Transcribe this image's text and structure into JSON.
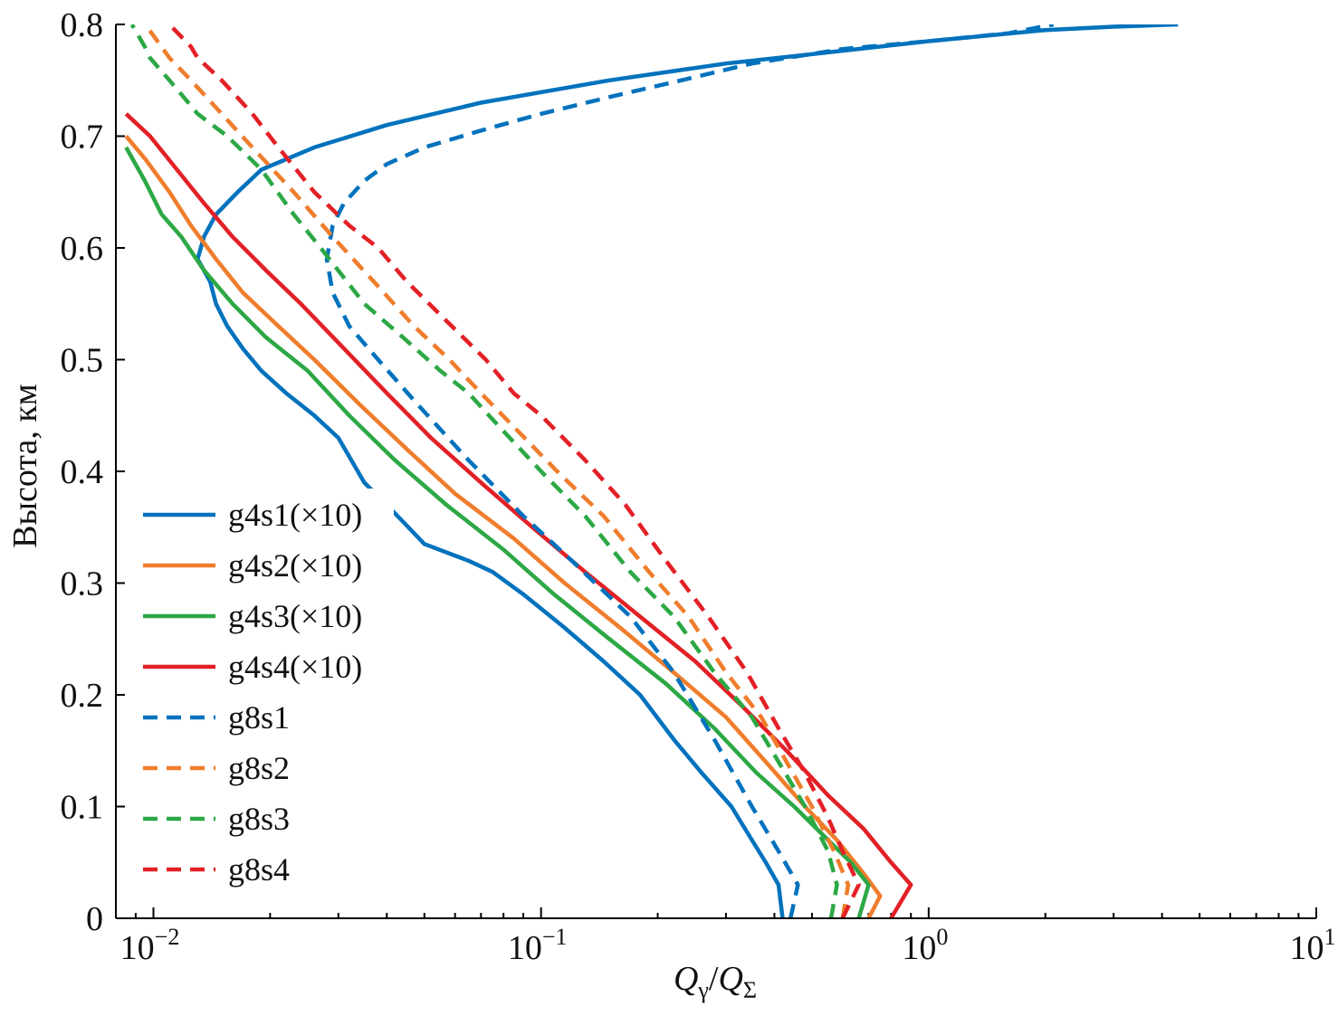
{
  "chart_data": {
    "type": "line",
    "title": "",
    "xlabel": "Q",
    "xlabel_parts": {
      "q1": "Q",
      "sub1": "γ",
      "slash": "/",
      "q2": "Q",
      "sub2": "Σ"
    },
    "ylabel": "Высота, км",
    "xscale": "log",
    "xlim": [
      0.008,
      10
    ],
    "ylim": [
      0,
      0.8
    ],
    "yticks": [
      "0",
      "0.1",
      "0.2",
      "0.3",
      "0.4",
      "0.5",
      "0.6",
      "0.7",
      "0.8"
    ],
    "xticks": [
      {
        "base": "10",
        "exp": "−2",
        "value": 0.01
      },
      {
        "base": "10",
        "exp": "−1",
        "value": 0.1
      },
      {
        "base": "10",
        "exp": "0",
        "value": 1
      },
      {
        "base": "10",
        "exp": "1",
        "value": 10
      }
    ],
    "legend_position": "lower-left",
    "series": [
      {
        "name": "g4s1(×10)",
        "color": "#0072bd",
        "dash": false,
        "points": [
          [
            0.42,
            0
          ],
          [
            0.41,
            0.03
          ],
          [
            0.38,
            0.05
          ],
          [
            0.35,
            0.07
          ],
          [
            0.31,
            0.1
          ],
          [
            0.26,
            0.13
          ],
          [
            0.22,
            0.16
          ],
          [
            0.18,
            0.2
          ],
          [
            0.145,
            0.23
          ],
          [
            0.115,
            0.26
          ],
          [
            0.09,
            0.29
          ],
          [
            0.075,
            0.31
          ],
          [
            0.065,
            0.32
          ],
          [
            0.05,
            0.335
          ],
          [
            0.04,
            0.37
          ],
          [
            0.035,
            0.39
          ],
          [
            0.03,
            0.43
          ],
          [
            0.026,
            0.45
          ],
          [
            0.022,
            0.47
          ],
          [
            0.019,
            0.49
          ],
          [
            0.017,
            0.51
          ],
          [
            0.0155,
            0.53
          ],
          [
            0.0145,
            0.55
          ],
          [
            0.014,
            0.57
          ],
          [
            0.013,
            0.59
          ],
          [
            0.0135,
            0.61
          ],
          [
            0.0145,
            0.63
          ],
          [
            0.0165,
            0.65
          ],
          [
            0.019,
            0.67
          ],
          [
            0.026,
            0.69
          ],
          [
            0.04,
            0.71
          ],
          [
            0.07,
            0.73
          ],
          [
            0.15,
            0.75
          ],
          [
            0.3,
            0.765
          ],
          [
            0.55,
            0.775
          ],
          [
            1.0,
            0.785
          ],
          [
            2.0,
            0.795
          ],
          [
            3.0,
            0.798
          ],
          [
            4.4,
            0.8
          ]
        ]
      },
      {
        "name": "g4s2(×10)",
        "color": "#ef7d2c",
        "dash": false,
        "points": [
          [
            0.7,
            0
          ],
          [
            0.75,
            0.02
          ],
          [
            0.68,
            0.04
          ],
          [
            0.58,
            0.07
          ],
          [
            0.48,
            0.1
          ],
          [
            0.38,
            0.14
          ],
          [
            0.3,
            0.18
          ],
          [
            0.22,
            0.22
          ],
          [
            0.16,
            0.26
          ],
          [
            0.115,
            0.3
          ],
          [
            0.085,
            0.34
          ],
          [
            0.06,
            0.38
          ],
          [
            0.045,
            0.42
          ],
          [
            0.034,
            0.46
          ],
          [
            0.026,
            0.5
          ],
          [
            0.021,
            0.53
          ],
          [
            0.017,
            0.56
          ],
          [
            0.0145,
            0.59
          ],
          [
            0.0125,
            0.62
          ],
          [
            0.011,
            0.65
          ],
          [
            0.0095,
            0.68
          ],
          [
            0.0085,
            0.7
          ]
        ]
      },
      {
        "name": "g4s3(×10)",
        "color": "#2ca845",
        "dash": false,
        "points": [
          [
            0.66,
            0
          ],
          [
            0.7,
            0.03
          ],
          [
            0.63,
            0.05
          ],
          [
            0.55,
            0.07
          ],
          [
            0.45,
            0.1
          ],
          [
            0.36,
            0.13
          ],
          [
            0.28,
            0.17
          ],
          [
            0.21,
            0.21
          ],
          [
            0.15,
            0.25
          ],
          [
            0.108,
            0.29
          ],
          [
            0.08,
            0.33
          ],
          [
            0.057,
            0.37
          ],
          [
            0.042,
            0.41
          ],
          [
            0.032,
            0.45
          ],
          [
            0.025,
            0.49
          ],
          [
            0.0195,
            0.52
          ],
          [
            0.016,
            0.55
          ],
          [
            0.0135,
            0.58
          ],
          [
            0.0118,
            0.61
          ],
          [
            0.0105,
            0.63
          ],
          [
            0.0095,
            0.66
          ],
          [
            0.0085,
            0.69
          ]
        ]
      },
      {
        "name": "g4s4(×10)",
        "color": "#e32026",
        "dash": false,
        "points": [
          [
            0.8,
            0
          ],
          [
            0.9,
            0.03
          ],
          [
            0.8,
            0.05
          ],
          [
            0.68,
            0.08
          ],
          [
            0.55,
            0.11
          ],
          [
            0.43,
            0.15
          ],
          [
            0.33,
            0.19
          ],
          [
            0.25,
            0.23
          ],
          [
            0.18,
            0.27
          ],
          [
            0.13,
            0.31
          ],
          [
            0.095,
            0.35
          ],
          [
            0.07,
            0.39
          ],
          [
            0.052,
            0.43
          ],
          [
            0.04,
            0.47
          ],
          [
            0.031,
            0.51
          ],
          [
            0.024,
            0.55
          ],
          [
            0.0195,
            0.58
          ],
          [
            0.016,
            0.61
          ],
          [
            0.0135,
            0.64
          ],
          [
            0.0115,
            0.67
          ],
          [
            0.0098,
            0.7
          ],
          [
            0.0085,
            0.72
          ]
        ]
      },
      {
        "name": "g8s1",
        "color": "#0072bd",
        "dash": true,
        "points": [
          [
            0.44,
            0
          ],
          [
            0.46,
            0.03
          ],
          [
            0.41,
            0.06
          ],
          [
            0.35,
            0.1
          ],
          [
            0.28,
            0.16
          ],
          [
            0.22,
            0.22
          ],
          [
            0.17,
            0.27
          ],
          [
            0.12,
            0.32
          ],
          [
            0.09,
            0.36
          ],
          [
            0.065,
            0.41
          ],
          [
            0.048,
            0.46
          ],
          [
            0.038,
            0.5
          ],
          [
            0.032,
            0.53
          ],
          [
            0.029,
            0.56
          ],
          [
            0.028,
            0.59
          ],
          [
            0.029,
            0.62
          ],
          [
            0.031,
            0.64
          ],
          [
            0.035,
            0.66
          ],
          [
            0.04,
            0.675
          ],
          [
            0.05,
            0.69
          ],
          [
            0.07,
            0.705
          ],
          [
            0.1,
            0.72
          ],
          [
            0.15,
            0.735
          ],
          [
            0.23,
            0.75
          ],
          [
            0.35,
            0.765
          ],
          [
            0.6,
            0.778
          ],
          [
            1.0,
            0.785
          ],
          [
            1.6,
            0.792
          ],
          [
            2.1,
            0.8
          ]
        ]
      },
      {
        "name": "g8s2",
        "color": "#ef7d2c",
        "dash": true,
        "points": [
          [
            0.6,
            0
          ],
          [
            0.62,
            0.03
          ],
          [
            0.57,
            0.06
          ],
          [
            0.5,
            0.1
          ],
          [
            0.43,
            0.14
          ],
          [
            0.37,
            0.18
          ],
          [
            0.3,
            0.22
          ],
          [
            0.24,
            0.27
          ],
          [
            0.19,
            0.31
          ],
          [
            0.145,
            0.36
          ],
          [
            0.11,
            0.4
          ],
          [
            0.085,
            0.44
          ],
          [
            0.07,
            0.47
          ],
          [
            0.058,
            0.5
          ],
          [
            0.047,
            0.53
          ],
          [
            0.037,
            0.57
          ],
          [
            0.029,
            0.61
          ],
          [
            0.023,
            0.65
          ],
          [
            0.018,
            0.69
          ],
          [
            0.015,
            0.72
          ],
          [
            0.0125,
            0.75
          ],
          [
            0.011,
            0.77
          ],
          [
            0.01,
            0.79
          ],
          [
            0.0095,
            0.8
          ]
        ]
      },
      {
        "name": "g8s3",
        "color": "#2ca845",
        "dash": true,
        "points": [
          [
            0.56,
            0
          ],
          [
            0.58,
            0.03
          ],
          [
            0.55,
            0.06
          ],
          [
            0.48,
            0.1
          ],
          [
            0.41,
            0.14
          ],
          [
            0.35,
            0.18
          ],
          [
            0.28,
            0.22
          ],
          [
            0.22,
            0.27
          ],
          [
            0.17,
            0.31
          ],
          [
            0.13,
            0.36
          ],
          [
            0.1,
            0.4
          ],
          [
            0.078,
            0.44
          ],
          [
            0.065,
            0.47
          ],
          [
            0.055,
            0.49
          ],
          [
            0.044,
            0.52
          ],
          [
            0.035,
            0.55
          ],
          [
            0.027,
            0.6
          ],
          [
            0.023,
            0.63
          ],
          [
            0.019,
            0.67
          ],
          [
            0.0155,
            0.7
          ],
          [
            0.013,
            0.72
          ],
          [
            0.011,
            0.75
          ],
          [
            0.0098,
            0.77
          ],
          [
            0.0095,
            0.78
          ],
          [
            0.0088,
            0.8
          ]
        ]
      },
      {
        "name": "g8s4",
        "color": "#e32026",
        "dash": true,
        "points": [
          [
            0.6,
            0
          ],
          [
            0.66,
            0.03
          ],
          [
            0.6,
            0.06
          ],
          [
            0.55,
            0.09
          ],
          [
            0.48,
            0.13
          ],
          [
            0.41,
            0.17
          ],
          [
            0.34,
            0.22
          ],
          [
            0.27,
            0.27
          ],
          [
            0.21,
            0.32
          ],
          [
            0.165,
            0.37
          ],
          [
            0.13,
            0.41
          ],
          [
            0.1,
            0.45
          ],
          [
            0.085,
            0.47
          ],
          [
            0.072,
            0.5
          ],
          [
            0.055,
            0.54
          ],
          [
            0.045,
            0.57
          ],
          [
            0.038,
            0.6
          ],
          [
            0.032,
            0.62
          ],
          [
            0.026,
            0.65
          ],
          [
            0.021,
            0.69
          ],
          [
            0.018,
            0.72
          ],
          [
            0.015,
            0.75
          ],
          [
            0.013,
            0.77
          ],
          [
            0.0125,
            0.78
          ],
          [
            0.011,
            0.8
          ]
        ]
      }
    ]
  }
}
